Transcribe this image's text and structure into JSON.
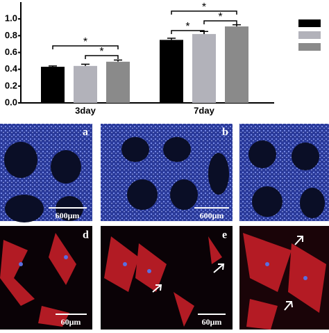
{
  "chart_data": {
    "type": "bar",
    "categories": [
      "3day",
      "7day"
    ],
    "series": [
      {
        "color": "#000000",
        "values": [
          0.43,
          0.75
        ],
        "errors": [
          0.01,
          0.02
        ]
      },
      {
        "color": "#b2b2ba",
        "values": [
          0.44,
          0.82
        ],
        "errors": [
          0.02,
          0.03
        ]
      },
      {
        "color": "#8a8a8a",
        "values": [
          0.49,
          0.91
        ],
        "errors": [
          0.02,
          0.02
        ]
      }
    ],
    "ylim": [
      0,
      1.2
    ],
    "yticks": [
      {
        "value": 0,
        "label": "0.0"
      },
      {
        "value": 0.2,
        "label": "0.2"
      },
      {
        "value": 0.4,
        "label": "0.4"
      },
      {
        "value": 0.6,
        "label": "0.6"
      },
      {
        "value": 0.8,
        "label": "0.8"
      },
      {
        "value": 1.0,
        "label": "1.0"
      }
    ],
    "annotations": [
      "*",
      "*",
      "*",
      "*",
      "*"
    ]
  },
  "panels": [
    {
      "label": "a",
      "scale": "600μm"
    },
    {
      "label": "b",
      "scale": "600μm"
    },
    {
      "label": "d",
      "scale": "60μm"
    },
    {
      "label": "e",
      "scale": "60μm"
    }
  ]
}
